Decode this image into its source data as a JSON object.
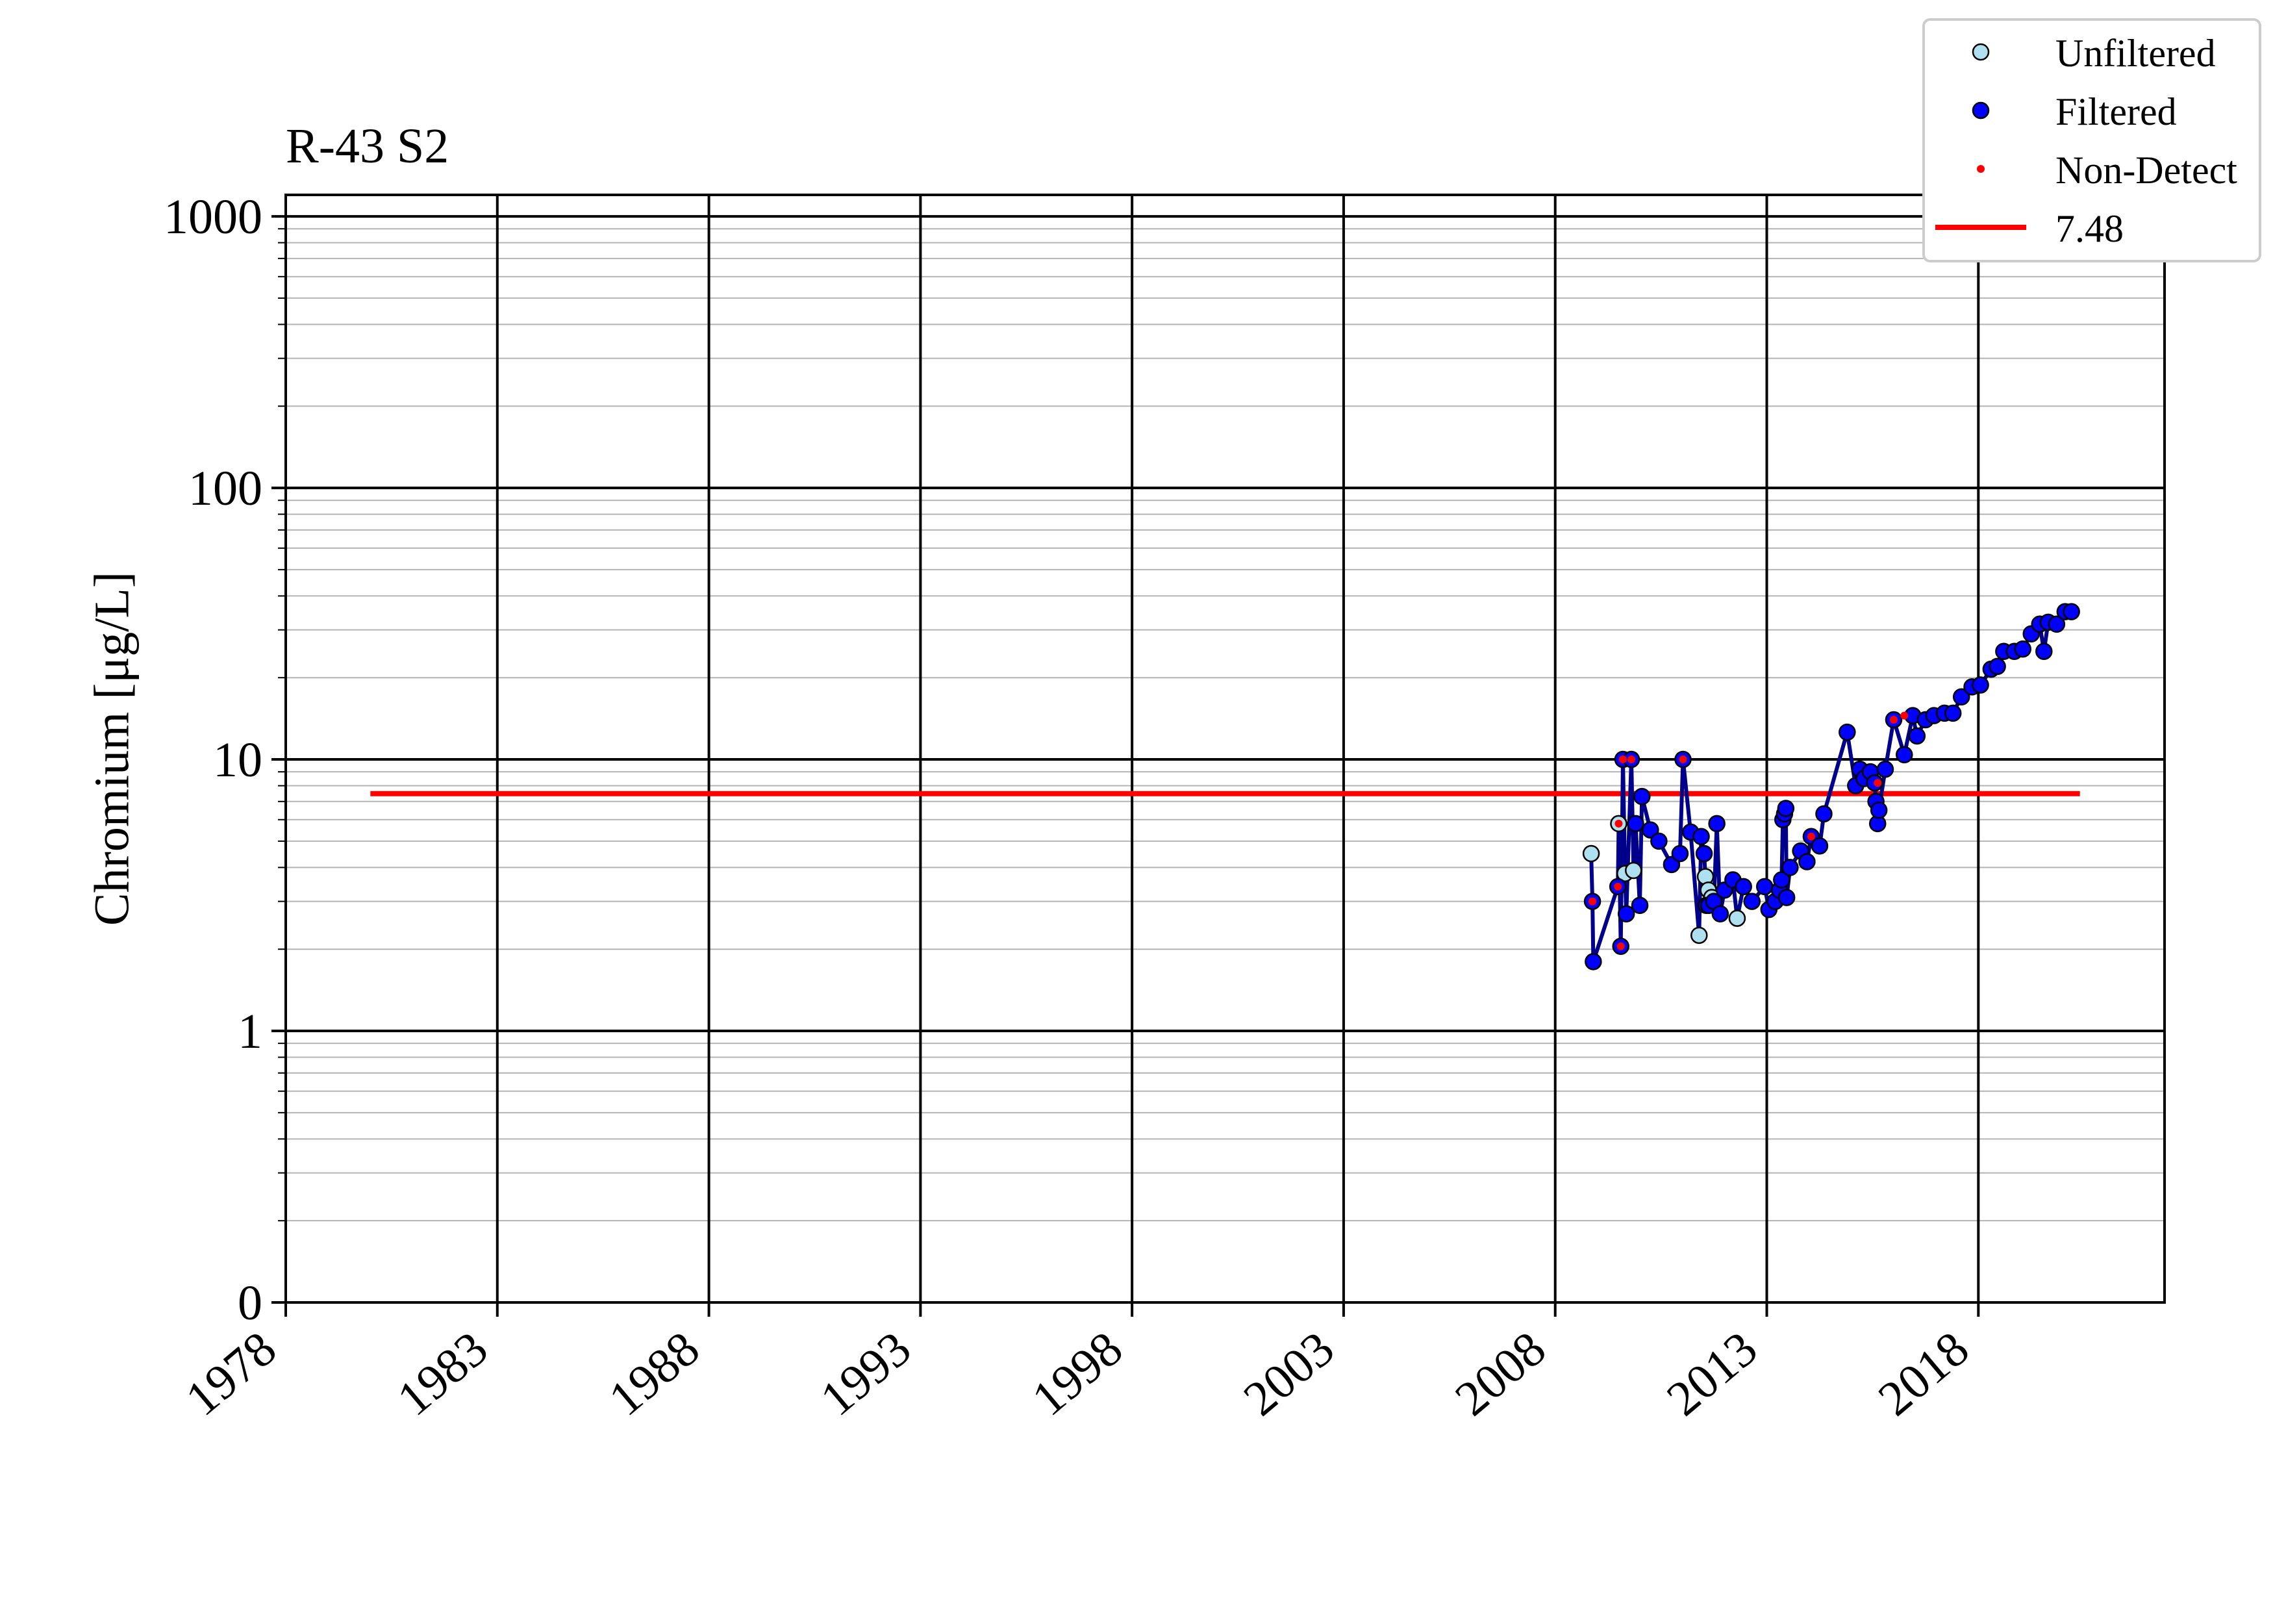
{
  "chart_data": {
    "type": "line",
    "title": "R-43 S2",
    "ylabel": "Chromium [μg/L]",
    "xlabel": "",
    "x_is_date": true,
    "xlim": [
      1978.0,
      2022.4
    ],
    "ylim": [
      0.1,
      1200
    ],
    "yscale": "log",
    "x_ticks": [
      1978,
      1983,
      1988,
      1993,
      1998,
      2003,
      2008,
      2013,
      2018
    ],
    "x_tick_labels": [
      "1978",
      "1983",
      "1988",
      "1993",
      "1998",
      "2003",
      "2008",
      "2013",
      "2018"
    ],
    "y_ticks": [
      0.1,
      1,
      10,
      100,
      1000
    ],
    "y_tick_labels": [
      "0",
      "1",
      "10",
      "100",
      "1000"
    ],
    "grid": true,
    "legend_position": "top-right",
    "legend": [
      {
        "label": "Unfiltered",
        "kind": "marker",
        "color": "#aee0f0"
      },
      {
        "label": "Filtered",
        "kind": "marker",
        "color": "#0000ff"
      },
      {
        "label": "Non-Detect",
        "kind": "dot",
        "color": "#ff0000"
      },
      {
        "label": "7.48",
        "kind": "line",
        "color": "#ff0000"
      }
    ],
    "reference_line": {
      "label": "7.48",
      "value": 7.48,
      "x_start": 1980.0,
      "x_end": 2020.4,
      "color": "#ff0000"
    },
    "line_color": "#00008b",
    "series": [
      {
        "name": "Unfiltered",
        "color": "#aee0f0",
        "x": [
          2008.85,
          2009.5,
          2009.65,
          2009.85,
          2011.4,
          2011.55,
          2011.62,
          2011.7,
          2012.3
        ],
        "y": [
          4.5,
          5.8,
          3.8,
          3.9,
          2.25,
          3.7,
          3.3,
          3.1,
          2.6
        ]
      },
      {
        "name": "Filtered",
        "color": "#0000ff",
        "x": [
          2008.88,
          2008.9,
          2009.48,
          2009.55,
          2009.6,
          2009.68,
          2009.8,
          2009.9,
          2010.0,
          2010.05,
          2010.25,
          2010.45,
          2010.75,
          2010.95,
          2011.02,
          2011.2,
          2011.45,
          2011.52,
          2011.57,
          2011.63,
          2011.75,
          2011.82,
          2011.9,
          2012.0,
          2012.2,
          2012.45,
          2012.65,
          2012.95,
          2013.05,
          2013.2,
          2013.3,
          2013.35,
          2013.38,
          2013.42,
          2013.45,
          2013.47,
          2013.55,
          2013.8,
          2013.95,
          2014.05,
          2014.25,
          2014.35,
          2014.9,
          2015.1,
          2015.2,
          2015.3,
          2015.45,
          2015.55,
          2015.58,
          2015.62,
          2015.65,
          2015.8,
          2016.0,
          2016.25,
          2016.45,
          2016.55,
          2016.75,
          2016.95,
          2017.2,
          2017.4,
          2017.6,
          2017.85,
          2018.05,
          2018.3,
          2018.45,
          2018.6,
          2018.85,
          2019.05,
          2019.25,
          2019.45,
          2019.55,
          2019.65,
          2019.85,
          2020.05,
          2020.2
        ],
        "y": [
          3.0,
          1.8,
          3.4,
          2.05,
          10.0,
          2.7,
          10.0,
          5.8,
          2.9,
          7.3,
          5.5,
          5.0,
          4.1,
          4.5,
          10.0,
          5.4,
          5.2,
          4.5,
          2.9,
          2.9,
          3.0,
          5.8,
          2.7,
          3.3,
          3.6,
          3.4,
          3.0,
          3.4,
          2.8,
          3.0,
          3.3,
          3.6,
          6.0,
          6.3,
          6.6,
          3.1,
          4.0,
          4.6,
          4.2,
          5.2,
          4.8,
          6.3,
          12.6,
          8.0,
          9.2,
          8.5,
          9.0,
          8.2,
          7.0,
          5.8,
          6.5,
          9.2,
          14.0,
          10.4,
          14.5,
          12.2,
          14.0,
          14.5,
          14.8,
          14.8,
          17.0,
          18.5,
          18.8,
          21.5,
          22.0,
          25.0,
          25.0,
          25.5,
          29.0,
          31.5,
          25.0,
          32.0,
          31.5,
          35.0,
          35.0
        ]
      },
      {
        "name": "Non-Detect",
        "color": "#ff0000",
        "x": [
          2008.88,
          2009.48,
          2009.5,
          2009.55,
          2009.6,
          2009.8,
          2011.02,
          2014.05,
          2015.62,
          2016.0,
          2016.25
        ],
        "y": [
          3.0,
          3.4,
          5.8,
          2.05,
          10.0,
          10.0,
          10.0,
          5.2,
          8.2,
          14.0,
          14.5
        ]
      }
    ]
  }
}
